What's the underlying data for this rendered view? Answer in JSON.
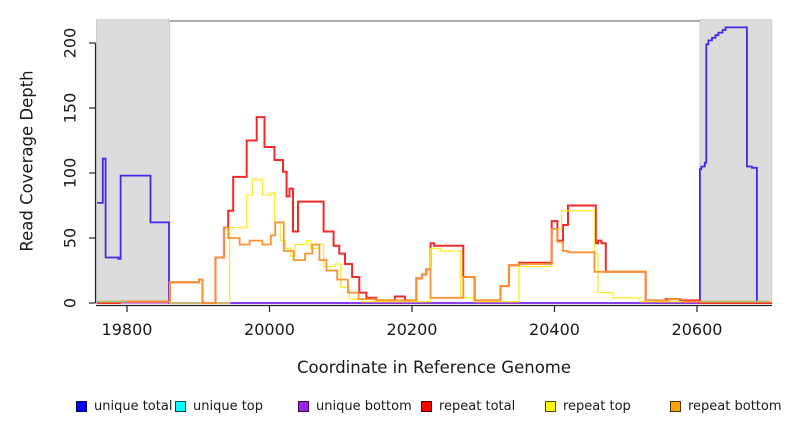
{
  "chart_data": {
    "type": "line",
    "title": "",
    "xlabel": "Coordinate in Reference Genome",
    "ylabel": "Read Coverage Depth",
    "xlim": [
      19757,
      20705
    ],
    "ylim": [
      0,
      218
    ],
    "x_ticks": [
      "19800",
      "20000",
      "20200",
      "20400",
      "20600"
    ],
    "x_tick_values": [
      19800,
      20000,
      20200,
      20400,
      20600
    ],
    "y_ticks": [
      "0",
      "50",
      "100",
      "150",
      "200"
    ],
    "y_tick_values": [
      0,
      50,
      100,
      150,
      200
    ],
    "grid": false,
    "step": true,
    "legend_position": "bottom",
    "shaded_regions": [
      {
        "name": "left-flank",
        "x0": 19757,
        "x1": 19860,
        "color": "#dcdcdc"
      },
      {
        "name": "right-flank",
        "x0": 20604,
        "x1": 20705,
        "color": "#dcdcdc"
      }
    ],
    "top_rule": {
      "x0": 19860,
      "x1": 20604,
      "y": 217,
      "color": "#9a9a9a"
    },
    "series": [
      {
        "name": "unique total",
        "color": "#4326ec",
        "width": 1.8,
        "points": [
          [
            19758,
            77
          ],
          [
            19766,
            77
          ],
          [
            19766,
            111
          ],
          [
            19770,
            111
          ],
          [
            19770,
            35
          ],
          [
            19788,
            35
          ],
          [
            19788,
            34
          ],
          [
            19791,
            34
          ],
          [
            19791,
            98
          ],
          [
            19833,
            98
          ],
          [
            19833,
            62
          ],
          [
            19859,
            62
          ],
          [
            19859,
            0
          ],
          [
            20604,
            0
          ],
          [
            20604,
            103
          ],
          [
            20606,
            103
          ],
          [
            20606,
            105
          ],
          [
            20611,
            105
          ],
          [
            20611,
            108
          ],
          [
            20613,
            108
          ],
          [
            20613,
            199
          ],
          [
            20616,
            199
          ],
          [
            20616,
            202
          ],
          [
            20621,
            202
          ],
          [
            20621,
            204
          ],
          [
            20626,
            204
          ],
          [
            20626,
            206
          ],
          [
            20630,
            206
          ],
          [
            20630,
            208
          ],
          [
            20636,
            208
          ],
          [
            20636,
            210
          ],
          [
            20640,
            210
          ],
          [
            20640,
            212
          ],
          [
            20670,
            212
          ],
          [
            20670,
            105
          ],
          [
            20677,
            105
          ],
          [
            20677,
            104
          ],
          [
            20684,
            104
          ],
          [
            20684,
            0
          ],
          [
            20705,
            0
          ]
        ]
      },
      {
        "name": "unique top",
        "color": "#00e5ee",
        "width": 1.1,
        "points": [
          [
            19757,
            0
          ],
          [
            20705,
            0
          ]
        ]
      },
      {
        "name": "unique bottom",
        "color": "#a020f0",
        "width": 1.0,
        "points": [
          [
            19757,
            0
          ],
          [
            20705,
            0
          ]
        ]
      },
      {
        "name": "repeat total",
        "color": "#f32a2a",
        "width": 2.0,
        "points": [
          [
            19758,
            0
          ],
          [
            19790,
            0
          ],
          [
            19790,
            1
          ],
          [
            19860,
            1
          ],
          [
            19860,
            16
          ],
          [
            19901,
            16
          ],
          [
            19901,
            18
          ],
          [
            19906,
            18
          ],
          [
            19906,
            0
          ],
          [
            19924,
            0
          ],
          [
            19924,
            35
          ],
          [
            19936,
            35
          ],
          [
            19936,
            58
          ],
          [
            19942,
            58
          ],
          [
            19942,
            71
          ],
          [
            19949,
            71
          ],
          [
            19949,
            97
          ],
          [
            19968,
            97
          ],
          [
            19968,
            125
          ],
          [
            19982,
            125
          ],
          [
            19982,
            143
          ],
          [
            19993,
            143
          ],
          [
            19993,
            120
          ],
          [
            20007,
            120
          ],
          [
            20007,
            110
          ],
          [
            20019,
            110
          ],
          [
            20019,
            101
          ],
          [
            20024,
            101
          ],
          [
            20024,
            82
          ],
          [
            20028,
            82
          ],
          [
            20028,
            88
          ],
          [
            20033,
            88
          ],
          [
            20033,
            55
          ],
          [
            20040,
            55
          ],
          [
            20040,
            78
          ],
          [
            20076,
            78
          ],
          [
            20076,
            55
          ],
          [
            20090,
            55
          ],
          [
            20090,
            44
          ],
          [
            20098,
            44
          ],
          [
            20098,
            38
          ],
          [
            20106,
            38
          ],
          [
            20106,
            30
          ],
          [
            20116,
            30
          ],
          [
            20116,
            20
          ],
          [
            20126,
            20
          ],
          [
            20126,
            8
          ],
          [
            20136,
            8
          ],
          [
            20136,
            4
          ],
          [
            20150,
            4
          ],
          [
            20150,
            2
          ],
          [
            20176,
            2
          ],
          [
            20176,
            5
          ],
          [
            20190,
            5
          ],
          [
            20190,
            2
          ],
          [
            20206,
            2
          ],
          [
            20206,
            19
          ],
          [
            20214,
            19
          ],
          [
            20214,
            22
          ],
          [
            20220,
            22
          ],
          [
            20220,
            26
          ],
          [
            20226,
            26
          ],
          [
            20226,
            46
          ],
          [
            20231,
            46
          ],
          [
            20231,
            44
          ],
          [
            20272,
            44
          ],
          [
            20272,
            20
          ],
          [
            20288,
            20
          ],
          [
            20288,
            2
          ],
          [
            20324,
            2
          ],
          [
            20324,
            13
          ],
          [
            20336,
            13
          ],
          [
            20336,
            29
          ],
          [
            20350,
            29
          ],
          [
            20350,
            31
          ],
          [
            20396,
            31
          ],
          [
            20396,
            63
          ],
          [
            20404,
            63
          ],
          [
            20404,
            48
          ],
          [
            20412,
            48
          ],
          [
            20412,
            60
          ],
          [
            20419,
            60
          ],
          [
            20419,
            75
          ],
          [
            20458,
            75
          ],
          [
            20458,
            46
          ],
          [
            20461,
            46
          ],
          [
            20461,
            48
          ],
          [
            20466,
            48
          ],
          [
            20466,
            46
          ],
          [
            20472,
            46
          ],
          [
            20472,
            24
          ],
          [
            20528,
            24
          ],
          [
            20528,
            2
          ],
          [
            20548,
            2
          ],
          [
            20548,
            1
          ],
          [
            20556,
            1
          ],
          [
            20556,
            3
          ],
          [
            20576,
            3
          ],
          [
            20576,
            2
          ],
          [
            20604,
            2
          ],
          [
            20604,
            0
          ],
          [
            20705,
            0
          ]
        ]
      },
      {
        "name": "repeat top",
        "color": "#ffe92c",
        "width": 1.3,
        "points": [
          [
            19758,
            1
          ],
          [
            19860,
            1
          ],
          [
            19860,
            0
          ],
          [
            19944,
            0
          ],
          [
            19944,
            58
          ],
          [
            19968,
            58
          ],
          [
            19968,
            83
          ],
          [
            19976,
            83
          ],
          [
            19976,
            95
          ],
          [
            19990,
            95
          ],
          [
            19990,
            83
          ],
          [
            20002,
            83
          ],
          [
            20002,
            85
          ],
          [
            20007,
            85
          ],
          [
            20007,
            62
          ],
          [
            20016,
            62
          ],
          [
            20016,
            48
          ],
          [
            20022,
            48
          ],
          [
            20022,
            42
          ],
          [
            20030,
            42
          ],
          [
            20030,
            36
          ],
          [
            20036,
            36
          ],
          [
            20036,
            45
          ],
          [
            20052,
            45
          ],
          [
            20052,
            48
          ],
          [
            20058,
            48
          ],
          [
            20058,
            42
          ],
          [
            20070,
            42
          ],
          [
            20070,
            45
          ],
          [
            20076,
            45
          ],
          [
            20076,
            28
          ],
          [
            20092,
            28
          ],
          [
            20092,
            30
          ],
          [
            20100,
            30
          ],
          [
            20100,
            12
          ],
          [
            20112,
            12
          ],
          [
            20112,
            3
          ],
          [
            20130,
            3
          ],
          [
            20130,
            1
          ],
          [
            20226,
            1
          ],
          [
            20226,
            42
          ],
          [
            20240,
            42
          ],
          [
            20240,
            40
          ],
          [
            20268,
            40
          ],
          [
            20268,
            4
          ],
          [
            20288,
            4
          ],
          [
            20288,
            1
          ],
          [
            20350,
            1
          ],
          [
            20350,
            28
          ],
          [
            20396,
            28
          ],
          [
            20396,
            57
          ],
          [
            20410,
            57
          ],
          [
            20410,
            71
          ],
          [
            20456,
            71
          ],
          [
            20456,
            38
          ],
          [
            20461,
            38
          ],
          [
            20461,
            8
          ],
          [
            20482,
            8
          ],
          [
            20482,
            4
          ],
          [
            20520,
            4
          ],
          [
            20520,
            1
          ],
          [
            20705,
            1
          ]
        ]
      },
      {
        "name": "repeat bottom",
        "color": "#fb9430",
        "width": 1.8,
        "points": [
          [
            19758,
            1
          ],
          [
            19860,
            1
          ],
          [
            19860,
            16
          ],
          [
            19901,
            16
          ],
          [
            19901,
            18
          ],
          [
            19906,
            18
          ],
          [
            19906,
            0
          ],
          [
            19924,
            0
          ],
          [
            19924,
            35
          ],
          [
            19936,
            35
          ],
          [
            19936,
            58
          ],
          [
            19942,
            58
          ],
          [
            19942,
            50
          ],
          [
            19958,
            50
          ],
          [
            19958,
            45
          ],
          [
            19972,
            45
          ],
          [
            19972,
            48
          ],
          [
            19990,
            48
          ],
          [
            19990,
            45
          ],
          [
            20002,
            45
          ],
          [
            20002,
            52
          ],
          [
            20008,
            52
          ],
          [
            20008,
            62
          ],
          [
            20020,
            62
          ],
          [
            20020,
            40
          ],
          [
            20034,
            40
          ],
          [
            20034,
            33
          ],
          [
            20050,
            33
          ],
          [
            20050,
            38
          ],
          [
            20060,
            38
          ],
          [
            20060,
            45
          ],
          [
            20070,
            45
          ],
          [
            20070,
            33
          ],
          [
            20080,
            33
          ],
          [
            20080,
            25
          ],
          [
            20095,
            25
          ],
          [
            20095,
            18
          ],
          [
            20110,
            18
          ],
          [
            20110,
            8
          ],
          [
            20125,
            8
          ],
          [
            20125,
            3
          ],
          [
            20150,
            3
          ],
          [
            20150,
            2
          ],
          [
            20206,
            2
          ],
          [
            20206,
            19
          ],
          [
            20214,
            19
          ],
          [
            20214,
            22
          ],
          [
            20220,
            22
          ],
          [
            20220,
            26
          ],
          [
            20226,
            26
          ],
          [
            20226,
            4
          ],
          [
            20272,
            4
          ],
          [
            20272,
            20
          ],
          [
            20288,
            20
          ],
          [
            20288,
            2
          ],
          [
            20324,
            2
          ],
          [
            20324,
            13
          ],
          [
            20336,
            13
          ],
          [
            20336,
            29
          ],
          [
            20350,
            29
          ],
          [
            20350,
            30
          ],
          [
            20396,
            30
          ],
          [
            20396,
            57
          ],
          [
            20404,
            57
          ],
          [
            20404,
            47
          ],
          [
            20412,
            47
          ],
          [
            20412,
            40
          ],
          [
            20419,
            40
          ],
          [
            20419,
            39
          ],
          [
            20456,
            39
          ],
          [
            20456,
            24
          ],
          [
            20472,
            24
          ],
          [
            20528,
            24
          ],
          [
            20528,
            2
          ],
          [
            20560,
            2
          ],
          [
            20560,
            3
          ],
          [
            20580,
            3
          ],
          [
            20580,
            1
          ],
          [
            20702,
            1
          ]
        ]
      },
      {
        "name": "flank baseline artifact",
        "color": "#82d982",
        "width": 1.2,
        "decorative": true,
        "points_segments": [
          [
            [
              19759,
              1
            ],
            [
              19800,
              1
            ]
          ],
          [
            [
              20607,
              1
            ],
            [
              20700,
              1
            ]
          ]
        ],
        "points": []
      }
    ]
  },
  "legend": {
    "items": [
      {
        "label": "unique total",
        "color": "#0000ff"
      },
      {
        "label": "unique top",
        "color": "#00ffff"
      },
      {
        "label": "unique bottom",
        "color": "#a020f0"
      },
      {
        "label": "repeat total",
        "color": "#ff0000"
      },
      {
        "label": "repeat top",
        "color": "#ffff00"
      },
      {
        "label": "repeat bottom",
        "color": "#ffa500"
      }
    ]
  }
}
